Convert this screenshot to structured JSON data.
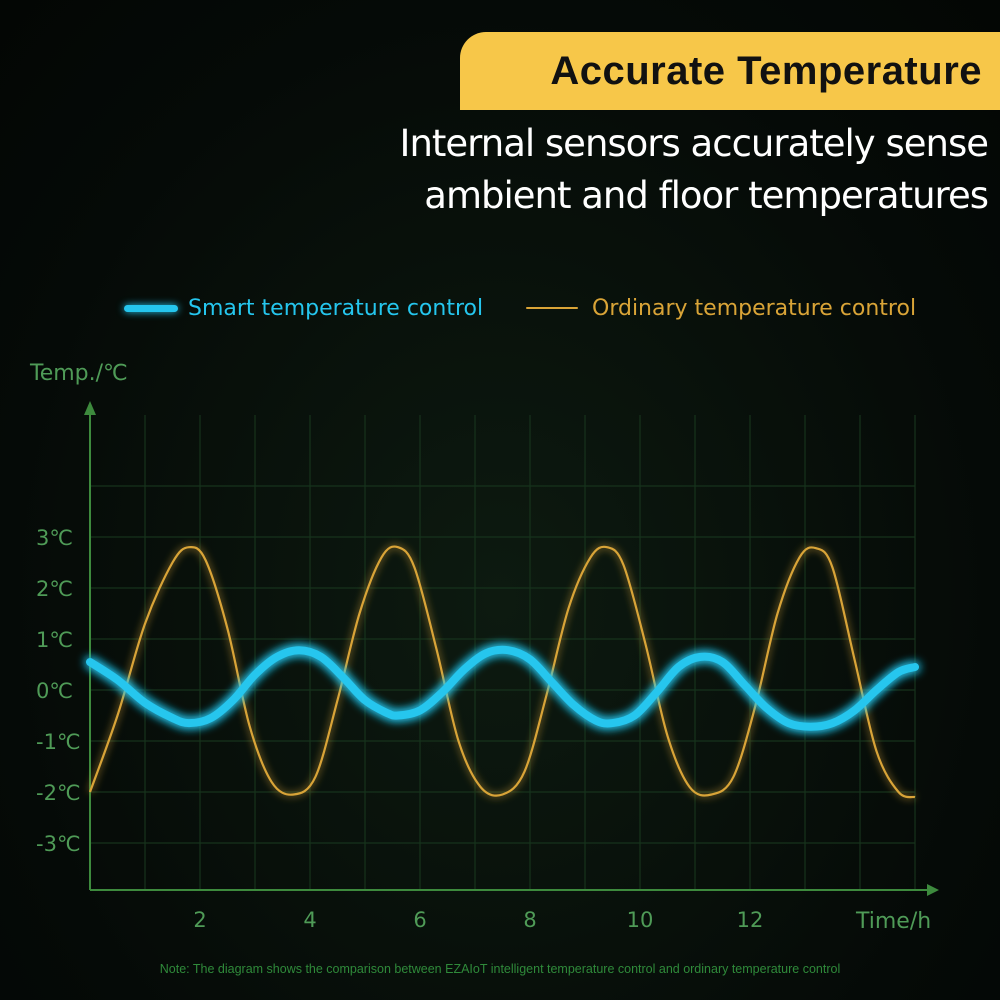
{
  "header": {
    "badge_title": "Accurate Temperature",
    "subtitle_line1": "Internal sensors accurately sense",
    "subtitle_line2": "ambient and floor temperatures"
  },
  "note": "Note: The diagram shows the comparison between EZAIoT intelligent temperature control and ordinary temperature control",
  "colors": {
    "smart": "#25c6ee",
    "ordinary": "#d9a437",
    "axis": "#3d8a3d",
    "label": "#4f9b57",
    "grid": "#17331c"
  },
  "chart_data": {
    "type": "line",
    "xlabel": "Time/h",
    "ylabel": "Temp./℃",
    "xlim": [
      0,
      15
    ],
    "ylim": [
      -4,
      4.5
    ],
    "xticks": [
      2,
      4,
      6,
      8,
      10,
      12
    ],
    "xtick_labels": [
      "2",
      "4",
      "6",
      "8",
      "10",
      "12"
    ],
    "yticks": [
      3,
      2,
      1,
      0,
      -1,
      -2,
      -3
    ],
    "ytick_labels": [
      "3℃",
      "2℃",
      "1℃",
      "0℃",
      "-1℃",
      "-2℃",
      "-3℃"
    ],
    "grid": true,
    "legend_placement": "top",
    "series": [
      {
        "name": "Smart temperature control",
        "x": [
          0,
          0.5,
          1.0,
          1.5,
          1.8,
          2.2,
          2.6,
          3.0,
          3.4,
          3.8,
          4.2,
          4.6,
          5.0,
          5.4,
          5.6,
          6.0,
          6.4,
          6.8,
          7.2,
          7.6,
          8.0,
          8.4,
          8.8,
          9.2,
          9.5,
          9.9,
          10.3,
          10.7,
          11.1,
          11.5,
          11.9,
          12.3,
          12.7,
          13.1,
          13.5,
          13.9,
          14.3,
          14.7,
          15.0
        ],
        "y": [
          0.55,
          0.2,
          -0.25,
          -0.55,
          -0.65,
          -0.55,
          -0.2,
          0.3,
          0.65,
          0.78,
          0.65,
          0.25,
          -0.2,
          -0.45,
          -0.5,
          -0.4,
          -0.05,
          0.4,
          0.72,
          0.78,
          0.6,
          0.15,
          -0.3,
          -0.6,
          -0.65,
          -0.5,
          -0.05,
          0.45,
          0.65,
          0.55,
          0.1,
          -0.35,
          -0.65,
          -0.72,
          -0.65,
          -0.4,
          0.0,
          0.35,
          0.45
        ]
      },
      {
        "name": "Ordinary temperature control",
        "x": [
          0,
          0.5,
          1.0,
          1.5,
          1.8,
          2.1,
          2.5,
          2.9,
          3.3,
          3.7,
          4.1,
          4.5,
          4.9,
          5.3,
          5.6,
          5.9,
          6.3,
          6.7,
          7.1,
          7.5,
          7.9,
          8.3,
          8.7,
          9.1,
          9.4,
          9.7,
          10.1,
          10.5,
          10.9,
          11.3,
          11.7,
          12.1,
          12.5,
          12.9,
          13.2,
          13.5,
          13.9,
          14.3,
          14.7,
          15.0
        ],
        "y": [
          -2.0,
          -0.5,
          1.3,
          2.5,
          2.8,
          2.55,
          1.2,
          -0.7,
          -1.8,
          -2.05,
          -1.7,
          -0.2,
          1.5,
          2.6,
          2.8,
          2.4,
          0.8,
          -1.0,
          -1.9,
          -2.05,
          -1.6,
          -0.1,
          1.6,
          2.6,
          2.8,
          2.45,
          0.9,
          -0.9,
          -1.9,
          -2.05,
          -1.7,
          -0.3,
          1.5,
          2.6,
          2.78,
          2.4,
          0.6,
          -1.2,
          -2.0,
          -2.1
        ]
      }
    ]
  }
}
